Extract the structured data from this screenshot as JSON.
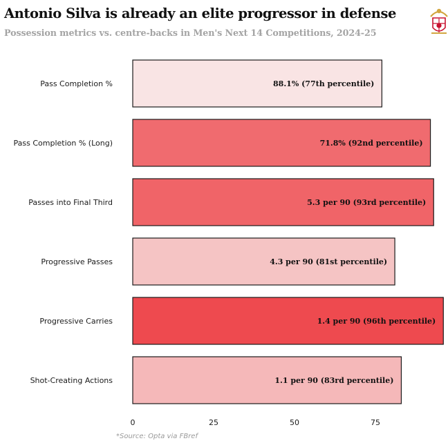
{
  "chart_data": {
    "type": "bar",
    "orientation": "horizontal",
    "title": "Antonio Silva is already an elite progressor in defense",
    "subtitle": "Possession metrics vs. centre-backs in Men's Next 14 Competitions, 2024-25",
    "source": "*Source: Opta via FBref",
    "categories": [
      "Pass Completion %",
      "Pass Completion % (Long)",
      "Passes into Final Third",
      "Progressive Passes",
      "Progressive Carries",
      "Shot-Creating Actions"
    ],
    "values": [
      77,
      92,
      93,
      81,
      96,
      83
    ],
    "labels": [
      "88.1% (77th percentile)",
      "71.8% (92nd percentile)",
      "5.3 per 90 (93rd percentile)",
      "4.3 per 90 (81st percentile)",
      "1.4 per 90 (96th percentile)",
      "1.1 per 90 (83rd percentile)"
    ],
    "bar_colors": [
      "#f9e4e4",
      "#f06b6f",
      "#f06468",
      "#f5c4c4",
      "#ee4a4f",
      "#f5b8b9"
    ],
    "xticks": [
      0,
      25,
      50,
      75
    ],
    "xlim": [
      0,
      96
    ],
    "grid": false,
    "legend": "none"
  },
  "crest_icon": "benfica-crest-icon"
}
